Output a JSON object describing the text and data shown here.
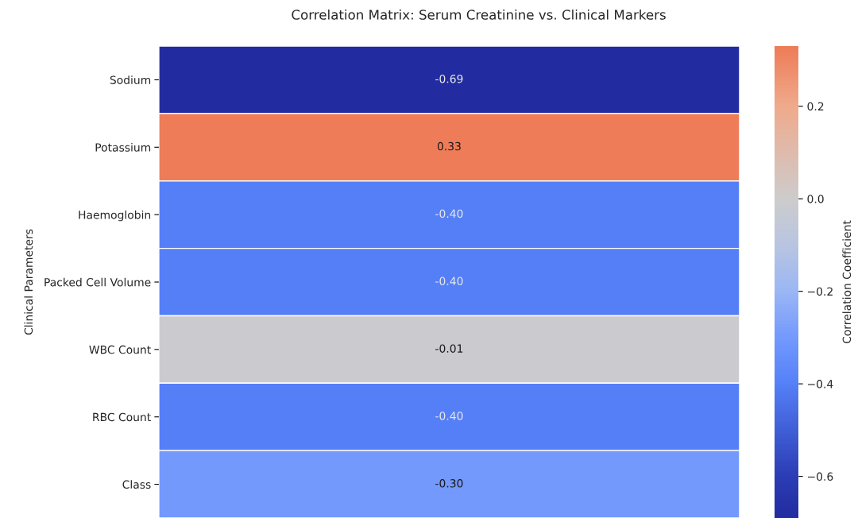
{
  "chart_data": {
    "type": "heatmap",
    "title": "Correlation Matrix: Serum Creatinine vs. Clinical Markers",
    "ylabel": "Clinical Parameters",
    "clabel": "Correlation Coefficient",
    "categories": [
      null
    ],
    "y_categories": [
      "Sodium",
      "Potassium",
      "Haemoglobin",
      "Packed Cell Volume",
      "WBC Count",
      "RBC Count",
      "Class"
    ],
    "cells": [
      [
        -0.69
      ],
      [
        0.33
      ],
      [
        -0.4
      ],
      [
        -0.4
      ],
      [
        -0.01
      ],
      [
        -0.4
      ],
      [
        -0.3
      ]
    ],
    "cell_labels": [
      [
        "-0.69"
      ],
      [
        "0.33"
      ],
      [
        "-0.40"
      ],
      [
        "-0.40"
      ],
      [
        "-0.01"
      ],
      [
        "-0.40"
      ],
      [
        "-0.30"
      ]
    ],
    "clim": [
      -0.69,
      0.33
    ],
    "cticks": [
      {
        "value": -0.6,
        "label": "−0.6"
      },
      {
        "value": -0.4,
        "label": "−0.4"
      },
      {
        "value": -0.2,
        "label": "−0.2"
      },
      {
        "value": 0,
        "label": "0.0"
      },
      {
        "value": 0.2,
        "label": "0.2"
      }
    ],
    "tick_labels": "y"
  }
}
